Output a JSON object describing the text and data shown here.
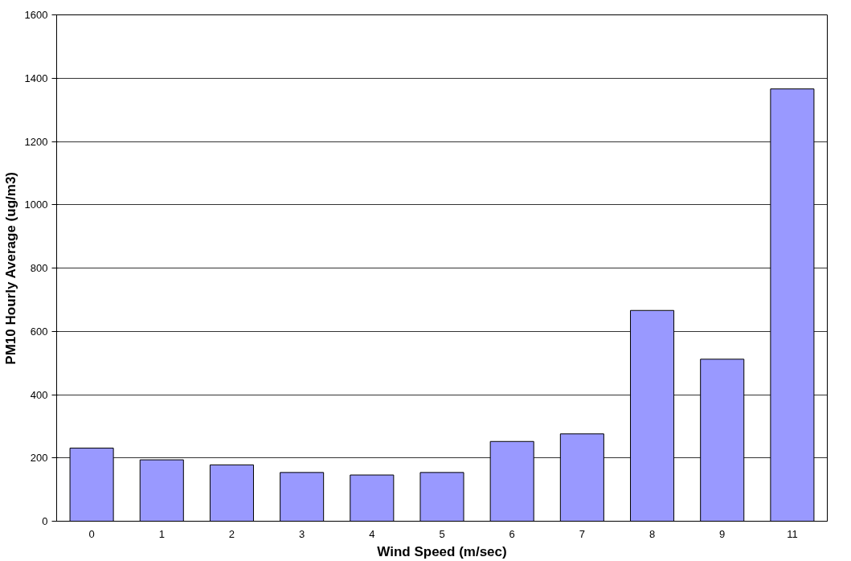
{
  "chart_data": {
    "type": "bar",
    "xlabel": "Wind Speed (m/sec)",
    "ylabel": "PM10 Hourly Average (ug/m3)",
    "categories": [
      "0",
      "1",
      "2",
      "3",
      "4",
      "5",
      "6",
      "7",
      "8",
      "9",
      "11"
    ],
    "values": [
      231,
      194,
      178,
      154,
      146,
      154,
      252,
      276,
      666,
      512,
      1366
    ],
    "color": "#9999ff",
    "ylim": [
      0,
      1600
    ],
    "yticks": [
      0,
      200,
      400,
      600,
      800,
      1000,
      1200,
      1400,
      1600
    ],
    "grid": "y"
  }
}
